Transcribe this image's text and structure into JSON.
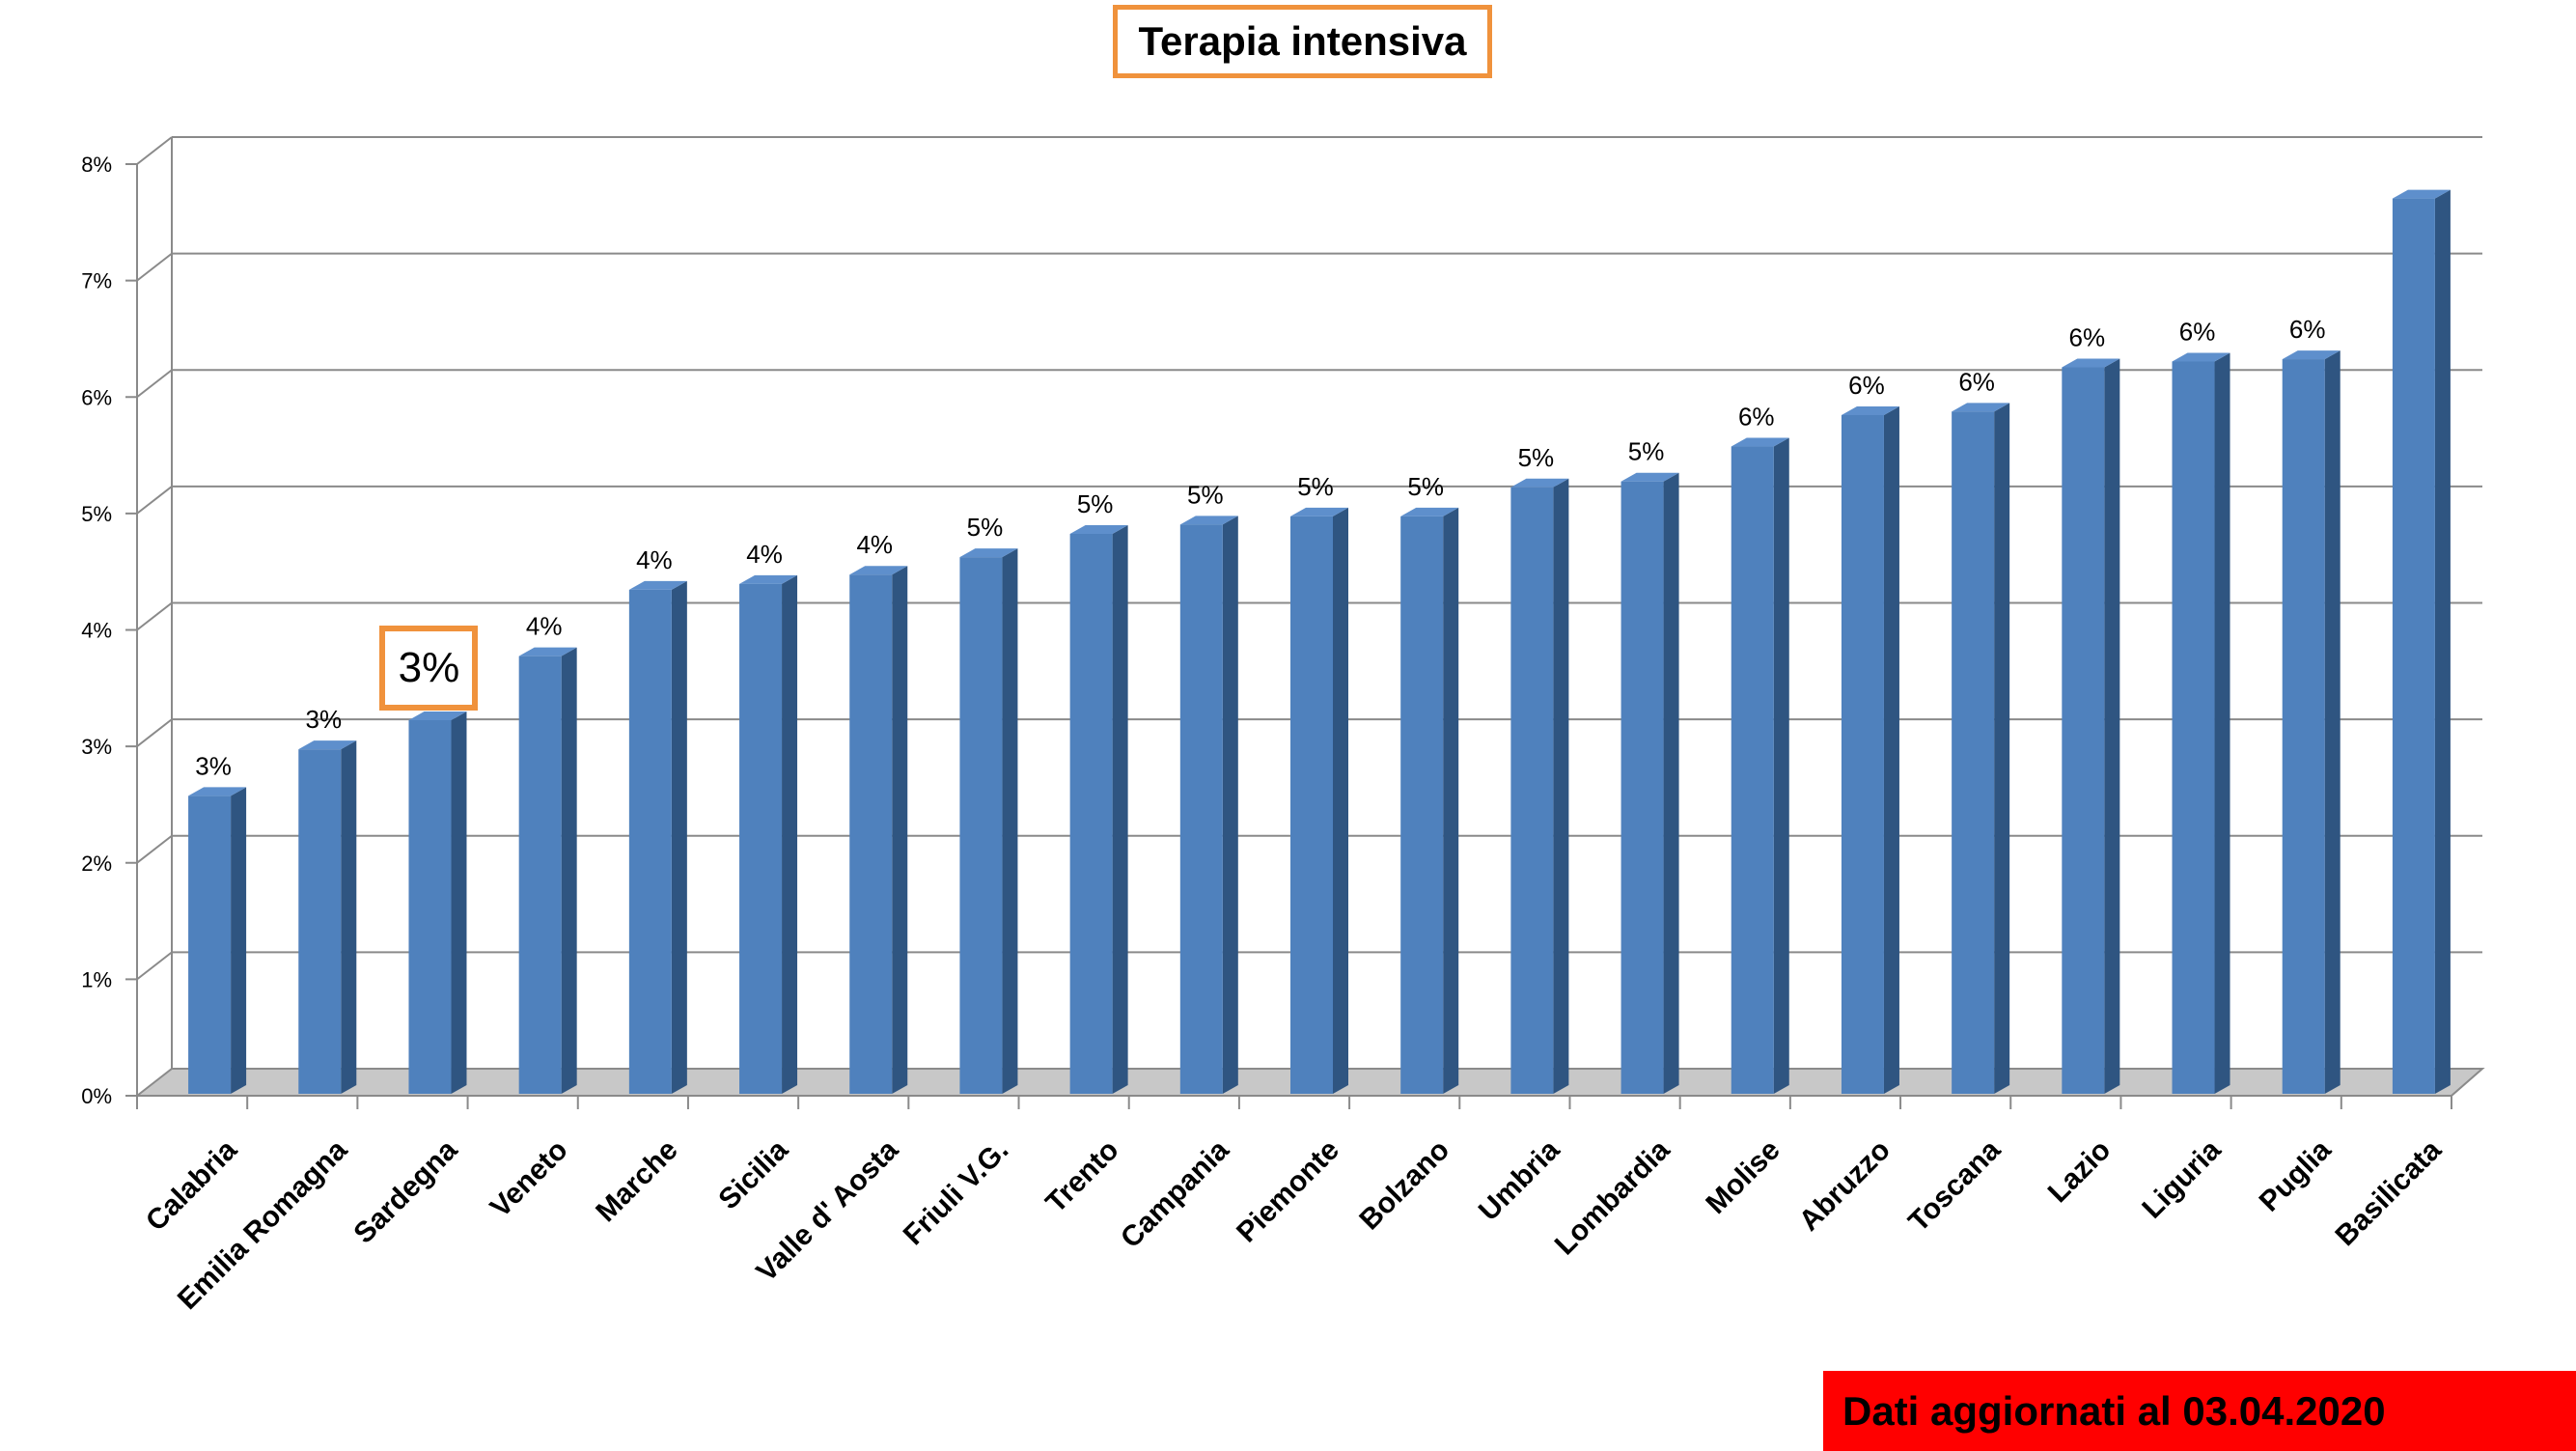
{
  "chart_data": {
    "type": "bar",
    "title": "Terapia intensiva",
    "categories": [
      "Calabria",
      "Emilia Romagna",
      "Sardegna",
      "Veneto",
      "Marche",
      "Sicilia",
      "Valle d' Aosta",
      "Friuli V.G.",
      "Trento",
      "Campania",
      "Piemonte",
      "Bolzano",
      "Umbria",
      "Lombardia",
      "Molise",
      "Abruzzo",
      "Toscana",
      "Lazio",
      "Liguria",
      "Puglia",
      "Basilicata"
    ],
    "values": [
      2.55,
      2.95,
      3.2,
      3.75,
      4.32,
      4.37,
      4.45,
      4.6,
      4.8,
      4.88,
      4.95,
      4.95,
      5.2,
      5.25,
      5.55,
      5.82,
      5.85,
      6.23,
      6.28,
      6.3,
      7.68
    ],
    "data_labels": [
      "3%",
      "3%",
      "3%",
      "4%",
      "4%",
      "4%",
      "4%",
      "5%",
      "5%",
      "5%",
      "5%",
      "5%",
      "5%",
      "5%",
      "6%",
      "6%",
      "6%",
      "6%",
      "6%",
      "6%",
      ""
    ],
    "y_ticks": [
      "0%",
      "1%",
      "2%",
      "3%",
      "4%",
      "5%",
      "6%",
      "7%",
      "8%"
    ],
    "ylim": [
      0,
      8
    ],
    "grid": true,
    "highlighted_category": "Sardegna",
    "bar_color": "#4f81bd"
  },
  "footer": "Dati aggiornati al 03.04.2020"
}
